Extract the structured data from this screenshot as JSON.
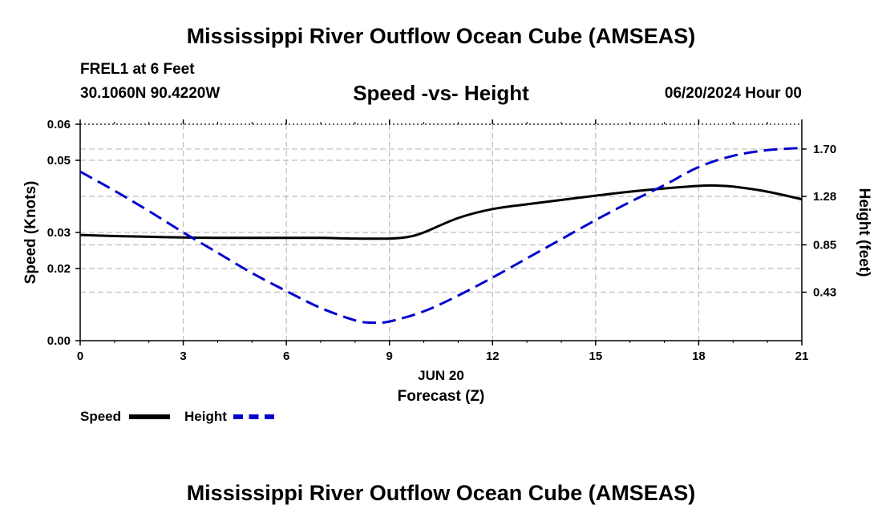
{
  "header": {
    "title": "Mississippi River Outflow Ocean Cube (AMSEAS)",
    "station": "FREL1 at 6 Feet",
    "coords": "30.1060N  90.4220W",
    "date": "06/20/2024 Hour 00"
  },
  "footer": {
    "title": "Mississippi River Outflow Ocean Cube (AMSEAS)"
  },
  "legend": {
    "speed_label": "Speed",
    "height_label": "Height"
  },
  "colors": {
    "speed": "#000000",
    "height": "#0000cc",
    "grid": "#bdbdbd"
  },
  "chart_data": {
    "type": "line",
    "title": "Speed -vs- Height",
    "xlabel": "Forecast (Z)",
    "xlabel_date": "JUN 20",
    "ylabel": "Speed (Knots)",
    "y2label": "Height (feet)",
    "xlim": [
      0,
      21
    ],
    "ylim": [
      0,
      0.06
    ],
    "y2lim": [
      0,
      1.92
    ],
    "xticks": [
      0,
      3,
      6,
      9,
      12,
      15,
      18,
      21
    ],
    "xtick_labels": [
      "0",
      "3",
      "6",
      "9",
      "12",
      "15",
      "18",
      "21"
    ],
    "yticks": [
      0,
      0.02,
      0.03,
      0.05,
      0.06
    ],
    "ytick_labels": [
      "0.00",
      "0.02",
      "0.03",
      "0.05",
      "0.06"
    ],
    "y2ticks": [
      0.43,
      0.85,
      1.28,
      1.7
    ],
    "y2tick_labels": [
      "0.43",
      "0.85",
      "1.28",
      "1.70"
    ],
    "grid": true,
    "series": [
      {
        "name": "Speed",
        "axis": "left",
        "style": "solid",
        "x": [
          0,
          1,
          2,
          3,
          4,
          5,
          6,
          7,
          8,
          9,
          9.5,
          10,
          11,
          12,
          13,
          14,
          15,
          16,
          17,
          18,
          18.5,
          19,
          20,
          21
        ],
        "values": [
          0.0293,
          0.029,
          0.0288,
          0.0286,
          0.0285,
          0.0285,
          0.0285,
          0.0285,
          0.0283,
          0.0283,
          0.0287,
          0.03,
          0.034,
          0.0365,
          0.0378,
          0.039,
          0.0402,
          0.0413,
          0.0422,
          0.0429,
          0.043,
          0.0427,
          0.0413,
          0.0392
        ]
      },
      {
        "name": "Height",
        "axis": "right",
        "style": "dashed",
        "x": [
          0,
          1,
          2,
          3,
          4,
          5,
          6,
          7,
          8,
          8.5,
          9,
          10,
          11,
          12,
          13,
          14,
          15,
          16,
          17,
          18,
          19,
          20,
          21
        ],
        "values": [
          1.5,
          1.33,
          1.15,
          0.96,
          0.78,
          0.6,
          0.44,
          0.29,
          0.18,
          0.16,
          0.17,
          0.26,
          0.4,
          0.56,
          0.73,
          0.9,
          1.07,
          1.23,
          1.38,
          1.54,
          1.64,
          1.69,
          1.71
        ]
      }
    ]
  }
}
